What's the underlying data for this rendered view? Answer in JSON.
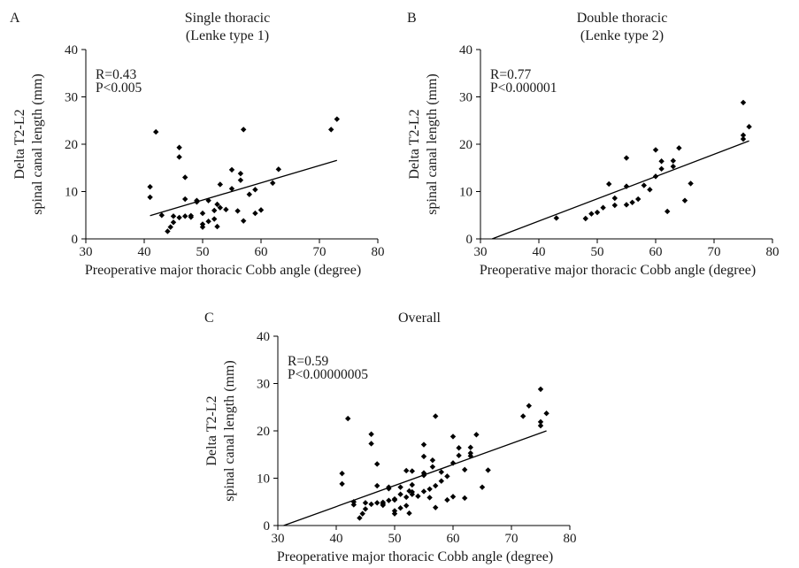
{
  "chart_data": [
    {
      "type": "scatter",
      "panel": "A",
      "title": "Single thoracic",
      "subtitle": "(Lenke type 1)",
      "xlabel": "Preoperative major thoracic Cobb angle (degree)",
      "ylabel_lines": [
        "Delta T2-L2",
        "spinal canal length (mm)"
      ],
      "xlim": [
        30,
        80
      ],
      "ylim": [
        0,
        40
      ],
      "xticks": [
        30,
        40,
        50,
        60,
        70,
        80
      ],
      "yticks": [
        0,
        10,
        20,
        30,
        40
      ],
      "stats": [
        "R=0.43",
        "P<0.005"
      ],
      "trendline": [
        [
          41,
          4.9
        ],
        [
          73,
          16.6
        ]
      ],
      "points": [
        [
          41,
          11
        ],
        [
          41,
          8.8
        ],
        [
          42,
          22.6
        ],
        [
          43,
          5
        ],
        [
          44,
          1.6
        ],
        [
          44.5,
          2.5
        ],
        [
          45,
          3.5
        ],
        [
          45,
          4.8
        ],
        [
          46,
          19.3
        ],
        [
          46,
          17.3
        ],
        [
          46,
          4.5
        ],
        [
          47,
          13
        ],
        [
          47,
          4.8
        ],
        [
          47,
          8.4
        ],
        [
          48,
          4.6
        ],
        [
          48,
          4.9
        ],
        [
          49,
          7.8
        ],
        [
          49,
          8.1
        ],
        [
          50,
          3.1
        ],
        [
          50,
          2.5
        ],
        [
          50,
          5.4
        ],
        [
          51,
          8.1
        ],
        [
          51,
          3.7
        ],
        [
          52,
          6
        ],
        [
          52,
          4.2
        ],
        [
          52.5,
          2.6
        ],
        [
          52.5,
          7.3
        ],
        [
          53,
          11.5
        ],
        [
          53,
          6.6
        ],
        [
          54,
          6.2
        ],
        [
          55,
          14.6
        ],
        [
          55,
          10.6
        ],
        [
          56,
          5.9
        ],
        [
          56.5,
          13.8
        ],
        [
          56.5,
          12.4
        ],
        [
          57,
          23.1
        ],
        [
          57,
          3.8
        ],
        [
          58,
          9.4
        ],
        [
          59,
          10.4
        ],
        [
          59,
          5.4
        ],
        [
          60,
          6.1
        ],
        [
          62,
          11.8
        ],
        [
          63,
          14.7
        ],
        [
          72,
          23.1
        ],
        [
          73,
          25.3
        ]
      ]
    },
    {
      "type": "scatter",
      "panel": "B",
      "title": "Double thoracic",
      "subtitle": "(Lenke type 2)",
      "xlabel": "Preoperative major thoracic Cobb angle (degree)",
      "ylabel_lines": [
        "Delta T2-L2",
        "spinal canal length (mm)"
      ],
      "xlim": [
        30,
        80
      ],
      "ylim": [
        0,
        40
      ],
      "xticks": [
        30,
        40,
        50,
        60,
        70,
        80
      ],
      "yticks": [
        0,
        10,
        20,
        30,
        40
      ],
      "stats": [
        "R=0.77",
        "P<0.000001"
      ],
      "trendline": [
        [
          32,
          0
        ],
        [
          76,
          20.7
        ]
      ],
      "points": [
        [
          43,
          4.4
        ],
        [
          48,
          4.3
        ],
        [
          49,
          5.3
        ],
        [
          50,
          5.6
        ],
        [
          51,
          6.6
        ],
        [
          52,
          11.6
        ],
        [
          53,
          7.1
        ],
        [
          53,
          8.6
        ],
        [
          55,
          17.1
        ],
        [
          55,
          11.1
        ],
        [
          55,
          7.2
        ],
        [
          56,
          7.7
        ],
        [
          57,
          8.4
        ],
        [
          58,
          11.3
        ],
        [
          59,
          10.4
        ],
        [
          60,
          18.8
        ],
        [
          60,
          13.2
        ],
        [
          61,
          16.4
        ],
        [
          61,
          14.8
        ],
        [
          62,
          5.8
        ],
        [
          63,
          16.5
        ],
        [
          63,
          15.3
        ],
        [
          64,
          19.2
        ],
        [
          65,
          8.1
        ],
        [
          66,
          11.7
        ],
        [
          75,
          28.8
        ],
        [
          75,
          21.9
        ],
        [
          75,
          21.1
        ],
        [
          76,
          23.7
        ]
      ]
    },
    {
      "type": "scatter",
      "panel": "C",
      "title": "Overall",
      "xlabel": "Preoperative major thoracic Cobb angle (degree)",
      "ylabel_lines": [
        "Delta T2-L2",
        "spinal canal length (mm)"
      ],
      "xlim": [
        30,
        80
      ],
      "ylim": [
        0,
        40
      ],
      "xticks": [
        30,
        40,
        50,
        60,
        70,
        80
      ],
      "yticks": [
        0,
        10,
        20,
        30,
        40
      ],
      "stats": [
        "R=0.59",
        "P<0.00000005"
      ],
      "trendline": [
        [
          31,
          0
        ],
        [
          76,
          20
        ]
      ],
      "points": [
        [
          41,
          11
        ],
        [
          41,
          8.8
        ],
        [
          42,
          22.6
        ],
        [
          43,
          5
        ],
        [
          43,
          4.4
        ],
        [
          44,
          1.6
        ],
        [
          44.5,
          2.5
        ],
        [
          45,
          3.5
        ],
        [
          45,
          4.8
        ],
        [
          46,
          19.3
        ],
        [
          46,
          17.3
        ],
        [
          46,
          4.5
        ],
        [
          47,
          13
        ],
        [
          47,
          4.8
        ],
        [
          47,
          8.4
        ],
        [
          48,
          4.6
        ],
        [
          48,
          4.9
        ],
        [
          48,
          4.3
        ],
        [
          49,
          7.8
        ],
        [
          49,
          8.1
        ],
        [
          49,
          5.3
        ],
        [
          50,
          3.1
        ],
        [
          50,
          2.5
        ],
        [
          50,
          5.4
        ],
        [
          50,
          5.6
        ],
        [
          51,
          8.1
        ],
        [
          51,
          3.7
        ],
        [
          51,
          6.6
        ],
        [
          52,
          6
        ],
        [
          52,
          4.2
        ],
        [
          52,
          11.6
        ],
        [
          52.5,
          2.6
        ],
        [
          52.5,
          7.3
        ],
        [
          53,
          11.5
        ],
        [
          53,
          6.6
        ],
        [
          53,
          7.1
        ],
        [
          53,
          8.6
        ],
        [
          54,
          6.2
        ],
        [
          55,
          14.6
        ],
        [
          55,
          10.6
        ],
        [
          55,
          17.1
        ],
        [
          55,
          11.1
        ],
        [
          55,
          7.2
        ],
        [
          56,
          5.9
        ],
        [
          56,
          7.7
        ],
        [
          56.5,
          13.8
        ],
        [
          56.5,
          12.4
        ],
        [
          57,
          23.1
        ],
        [
          57,
          3.8
        ],
        [
          57,
          8.4
        ],
        [
          58,
          9.4
        ],
        [
          58,
          11.3
        ],
        [
          59,
          10.4
        ],
        [
          59,
          5.4
        ],
        [
          60,
          6.1
        ],
        [
          60,
          18.8
        ],
        [
          60,
          13.2
        ],
        [
          61,
          16.4
        ],
        [
          61,
          14.8
        ],
        [
          62,
          11.8
        ],
        [
          62,
          5.8
        ],
        [
          63,
          14.7
        ],
        [
          63,
          16.5
        ],
        [
          63,
          15.3
        ],
        [
          64,
          19.2
        ],
        [
          65,
          8.1
        ],
        [
          66,
          11.7
        ],
        [
          72,
          23.1
        ],
        [
          73,
          25.3
        ],
        [
          75,
          28.8
        ],
        [
          75,
          21.9
        ],
        [
          75,
          21.1
        ],
        [
          76,
          23.7
        ]
      ]
    }
  ]
}
